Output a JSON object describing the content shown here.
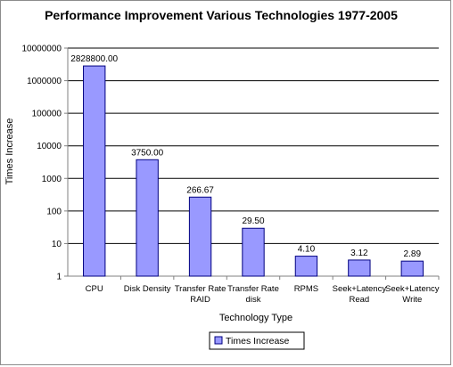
{
  "chart_data": {
    "type": "bar",
    "title": "Performance Improvement Various Technologies 1977-2005",
    "xlabel": "Technology Type",
    "ylabel": "Times Increase",
    "yscale": "log",
    "ylim": [
      1,
      10000000
    ],
    "yticks": [
      "1",
      "10",
      "100",
      "1000",
      "10000",
      "100000",
      "1000000",
      "10000000"
    ],
    "grid": true,
    "legend": "bottom-center",
    "categories": [
      [
        "CPU"
      ],
      [
        "Disk Density"
      ],
      [
        "Transfer Rate",
        "RAID"
      ],
      [
        "Transfer Rate",
        "disk"
      ],
      [
        "RPMS"
      ],
      [
        "Seek+Latency",
        "Read"
      ],
      [
        "Seek+Latency",
        "Write"
      ]
    ],
    "series": [
      {
        "name": "Times Increase",
        "values": [
          2828800.0,
          3750.0,
          266.67,
          29.5,
          4.1,
          3.12,
          2.89
        ],
        "labels": [
          "2828800.00",
          "3750.00",
          "266.67",
          "29.50",
          "4.10",
          "3.12",
          "2.89"
        ]
      }
    ],
    "colors": {
      "bar_fill": "#9999ff",
      "bar_stroke": "#000080",
      "plot_bg": "#ffffff",
      "grid": "#000000",
      "axis": "#808080"
    }
  }
}
